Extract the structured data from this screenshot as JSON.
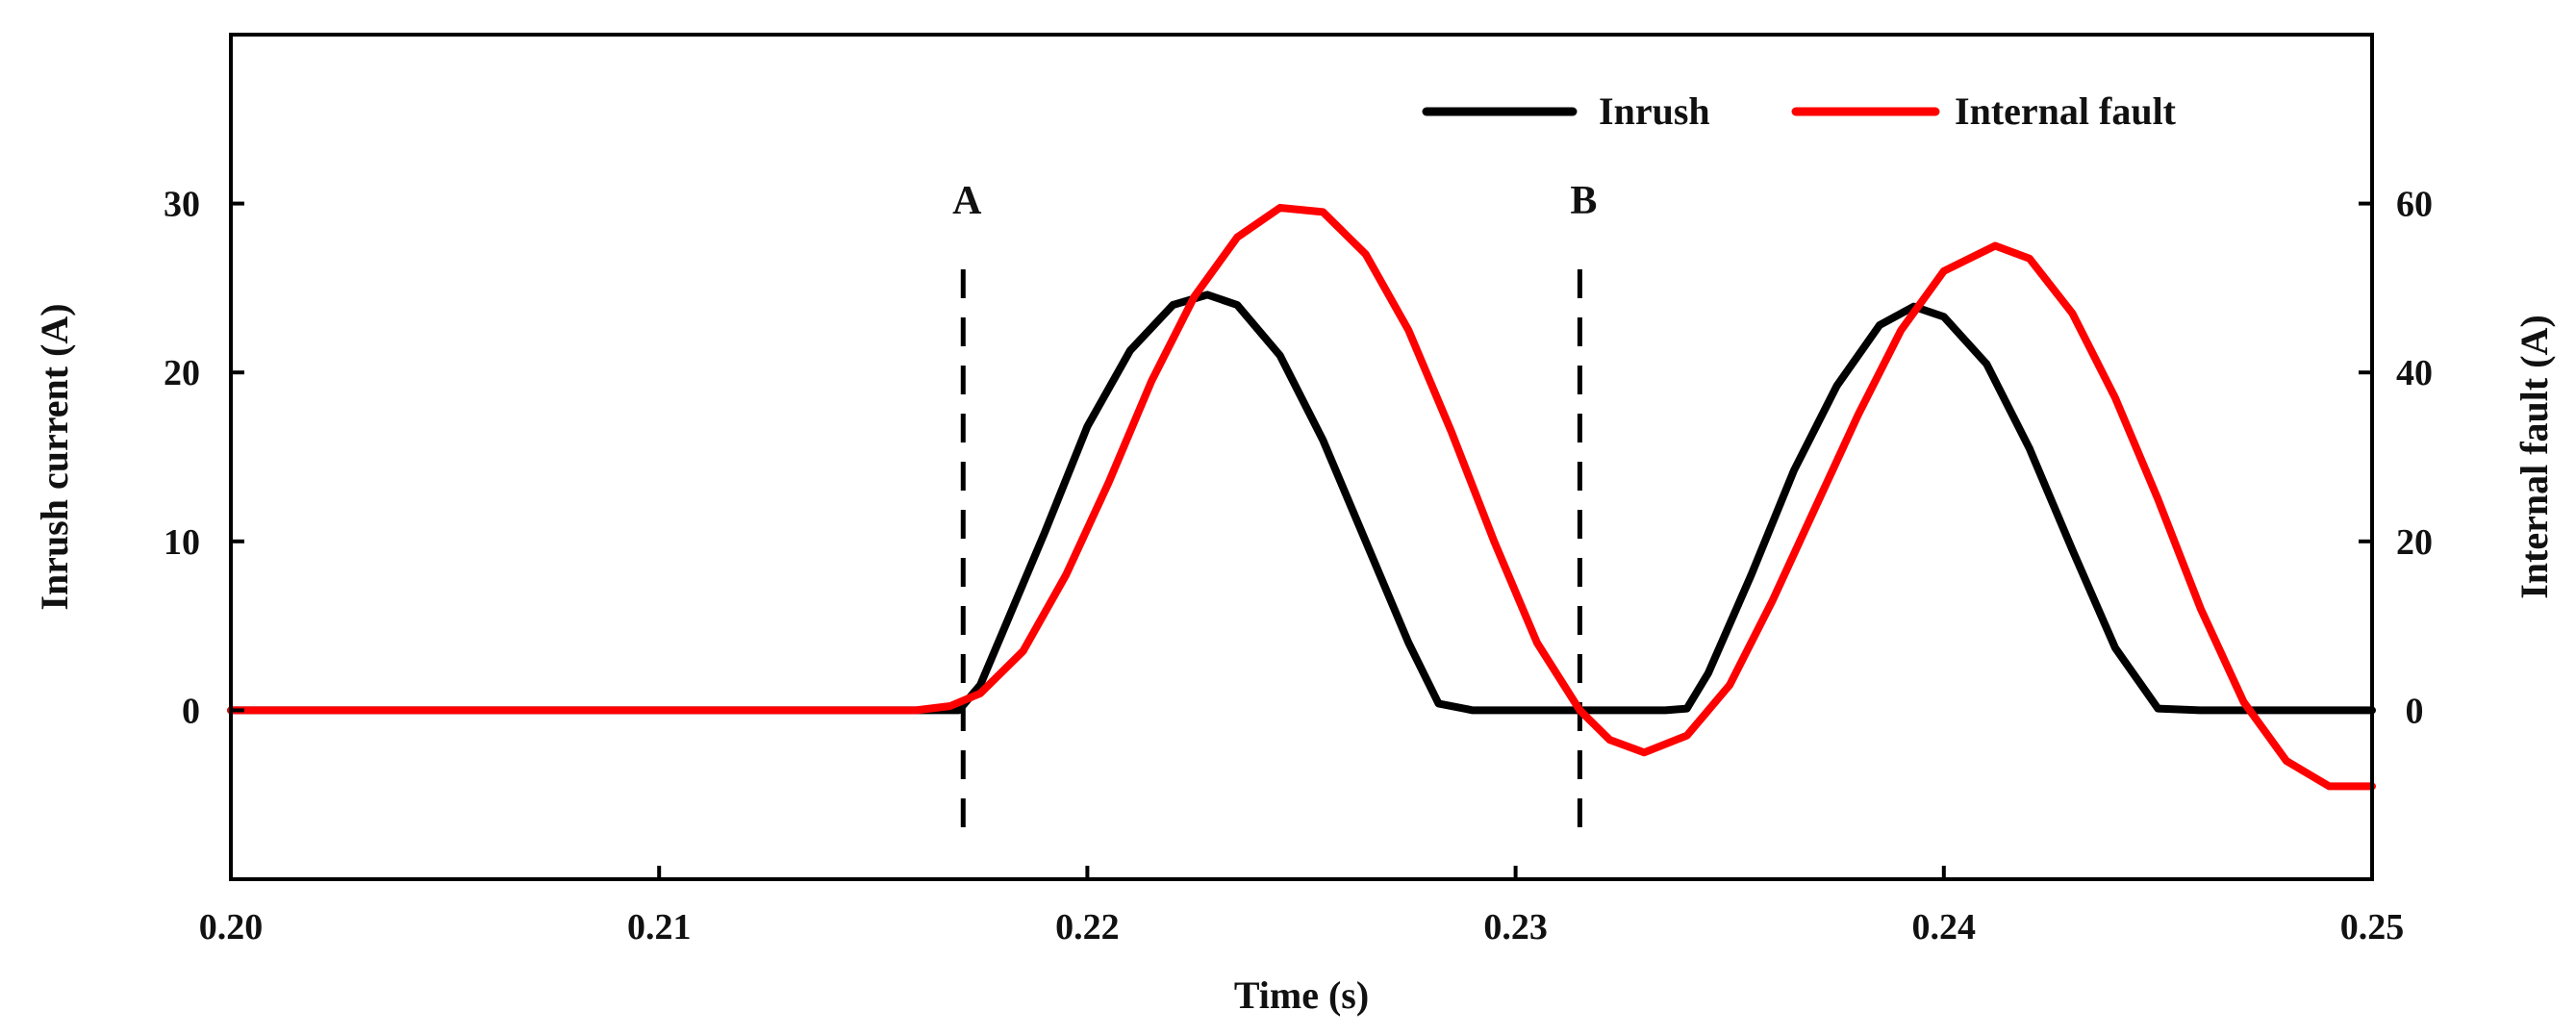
{
  "chart_data": {
    "type": "line",
    "title": "",
    "xlabel": "Time (s)",
    "ylabel_left": "Inrush current (A)",
    "ylabel_right": "Internal fault (A)",
    "xlim": [
      0.2,
      0.25
    ],
    "ylim_left": [
      -10,
      40
    ],
    "ylim_right": [
      -20,
      80
    ],
    "xticks": [
      0.2,
      0.21,
      0.22,
      0.23,
      0.24,
      0.25
    ],
    "xtick_labels": [
      "0.20",
      "0.21",
      "0.22",
      "0.23",
      "0.24",
      "0.25"
    ],
    "yticks_left": [
      0,
      10,
      20,
      30
    ],
    "ytick_labels_left": [
      "0",
      "10",
      "20",
      "30"
    ],
    "yticks_right": [
      0,
      20,
      40,
      60
    ],
    "ytick_labels_right": [
      "0",
      "20",
      "40",
      "60"
    ],
    "grid": false,
    "legend_position": "top-right",
    "series": [
      {
        "name": "Inrush",
        "axis": "left",
        "color": "#000000",
        "x": [
          0.2,
          0.21,
          0.217,
          0.2175,
          0.218,
          0.219,
          0.22,
          0.221,
          0.222,
          0.2228,
          0.2235,
          0.2245,
          0.2255,
          0.2265,
          0.2275,
          0.2282,
          0.229,
          0.23,
          0.232,
          0.2335,
          0.234,
          0.2345,
          0.2355,
          0.2365,
          0.2375,
          0.2385,
          0.2393,
          0.24,
          0.241,
          0.242,
          0.243,
          0.244,
          0.245,
          0.246,
          0.248,
          0.25
        ],
        "y": [
          0,
          0,
          0,
          1.5,
          4.5,
          10.5,
          16.8,
          21.3,
          24.0,
          24.6,
          24.0,
          21.0,
          16.0,
          10.0,
          4.0,
          0.4,
          0,
          0,
          0,
          0,
          0.1,
          2.2,
          8.0,
          14.2,
          19.2,
          22.8,
          23.9,
          23.3,
          20.5,
          15.5,
          9.5,
          3.7,
          0.1,
          0,
          0,
          0
        ]
      },
      {
        "name": "Internal fault",
        "axis": "right",
        "color": "#ff0000",
        "x": [
          0.2,
          0.21,
          0.216,
          0.2168,
          0.2175,
          0.2185,
          0.2195,
          0.2205,
          0.2215,
          0.2225,
          0.2235,
          0.2245,
          0.2255,
          0.2265,
          0.2275,
          0.2285,
          0.2295,
          0.2305,
          0.2315,
          0.2322,
          0.233,
          0.234,
          0.235,
          0.236,
          0.237,
          0.238,
          0.239,
          0.24,
          0.2412,
          0.242,
          0.243,
          0.244,
          0.245,
          0.246,
          0.247,
          0.248,
          0.249,
          0.25
        ],
        "y": [
          0,
          0,
          0,
          0.5,
          2.0,
          7.0,
          16.0,
          27.0,
          39.0,
          49.0,
          56.0,
          59.5,
          59.0,
          54.0,
          45.0,
          33.0,
          20.0,
          8.0,
          0,
          -3.5,
          -5.0,
          -3.0,
          3.0,
          13.0,
          24.0,
          35.0,
          45.0,
          52.0,
          55.0,
          53.5,
          47.0,
          37.0,
          25.0,
          12.0,
          1.0,
          -6.0,
          -9.0,
          -9.0
        ]
      }
    ],
    "markers": [
      {
        "label": "A",
        "x": 0.2171
      },
      {
        "label": "B",
        "x": 0.2315
      }
    ]
  }
}
